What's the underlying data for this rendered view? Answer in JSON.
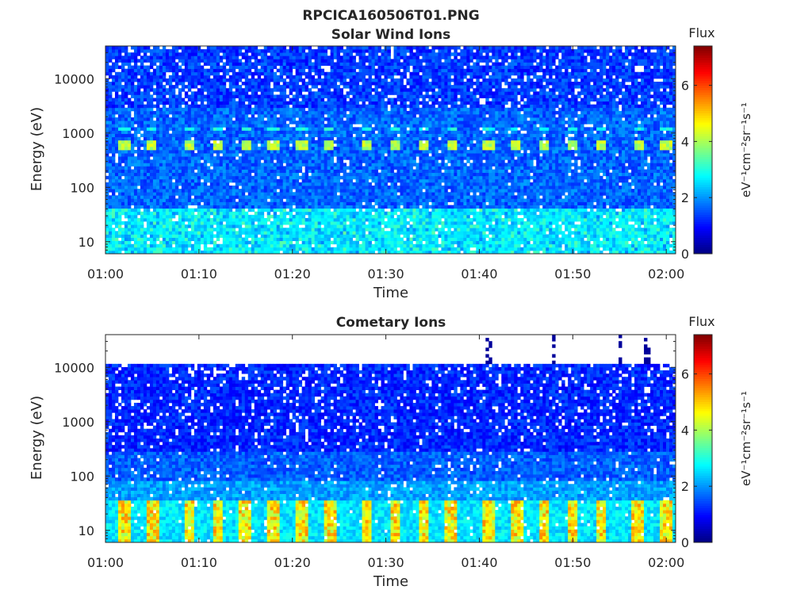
{
  "figure": {
    "title": "RPCICA160506T01.PNG"
  },
  "chart_data": [
    {
      "type": "heatmap",
      "title": "Solar Wind Ions",
      "xlabel": "Time",
      "ylabel": "Energy (eV)",
      "x_range": [
        "01:00",
        "02:01"
      ],
      "x_ticks": [
        "01:00",
        "01:10",
        "01:20",
        "01:30",
        "01:40",
        "01:50",
        "02:00"
      ],
      "y_scale": "log",
      "y_range": [
        6,
        40000
      ],
      "y_ticks": [
        "10",
        "100",
        "1000",
        "10000"
      ],
      "colorbar": {
        "label": "Flux",
        "unit_label": "eV⁻¹cm⁻²sr⁻¹s⁻¹",
        "range": [
          0,
          7.4
        ],
        "ticks": [
          "0",
          "2",
          "4",
          "6"
        ],
        "colormap": "jet"
      },
      "features": {
        "background_flux": "about 1-2 across all energies, higher (about 2-3) near 20 eV",
        "peak_energy_eV": 600,
        "secondary_energy_eV": 1200,
        "peak_times": [
          "01:02",
          "01:05",
          "01:09",
          "01:12",
          "01:15",
          "01:18",
          "01:21",
          "01:24",
          "01:28",
          "01:31",
          "01:34",
          "01:37",
          "01:41",
          "01:44",
          "01:47",
          "01:50",
          "01:53",
          "01:57",
          "02:00"
        ],
        "peak_flux": 4.5,
        "secondary_flux": 3.2
      }
    },
    {
      "type": "heatmap",
      "title": "Cometary Ions",
      "xlabel": "Time",
      "ylabel": "Energy (eV)",
      "x_range": [
        "01:00",
        "02:01"
      ],
      "x_ticks": [
        "01:00",
        "01:10",
        "01:20",
        "01:30",
        "01:40",
        "01:50",
        "02:00"
      ],
      "y_scale": "log",
      "y_range": [
        6,
        40000
      ],
      "y_ticks": [
        "10",
        "100",
        "1000",
        "10000"
      ],
      "colorbar": {
        "label": "Flux",
        "unit_label": "eV⁻¹cm⁻²sr⁻¹s⁻¹",
        "range": [
          0,
          7.4
        ],
        "ticks": [
          "0",
          "2",
          "4",
          "6"
        ],
        "colormap": "jet"
      },
      "features": {
        "data_upper_energy_eV": 11000,
        "background_flux": "about 1 at high energy rising to 2-3 below 40 eV",
        "low_energy_band_eV": [
          6,
          35
        ],
        "peak_energy_eV": 20,
        "peak_times": [
          "01:02",
          "01:05",
          "01:09",
          "01:12",
          "01:15",
          "01:18",
          "01:21",
          "01:24",
          "01:28",
          "01:31",
          "01:34",
          "01:37",
          "01:41",
          "01:44",
          "01:47",
          "01:50",
          "01:53",
          "01:57",
          "02:00"
        ],
        "peak_flux": 5.5,
        "high_energy_columns": [
          "01:41",
          "01:48",
          "01:55",
          "01:58"
        ]
      }
    }
  ]
}
